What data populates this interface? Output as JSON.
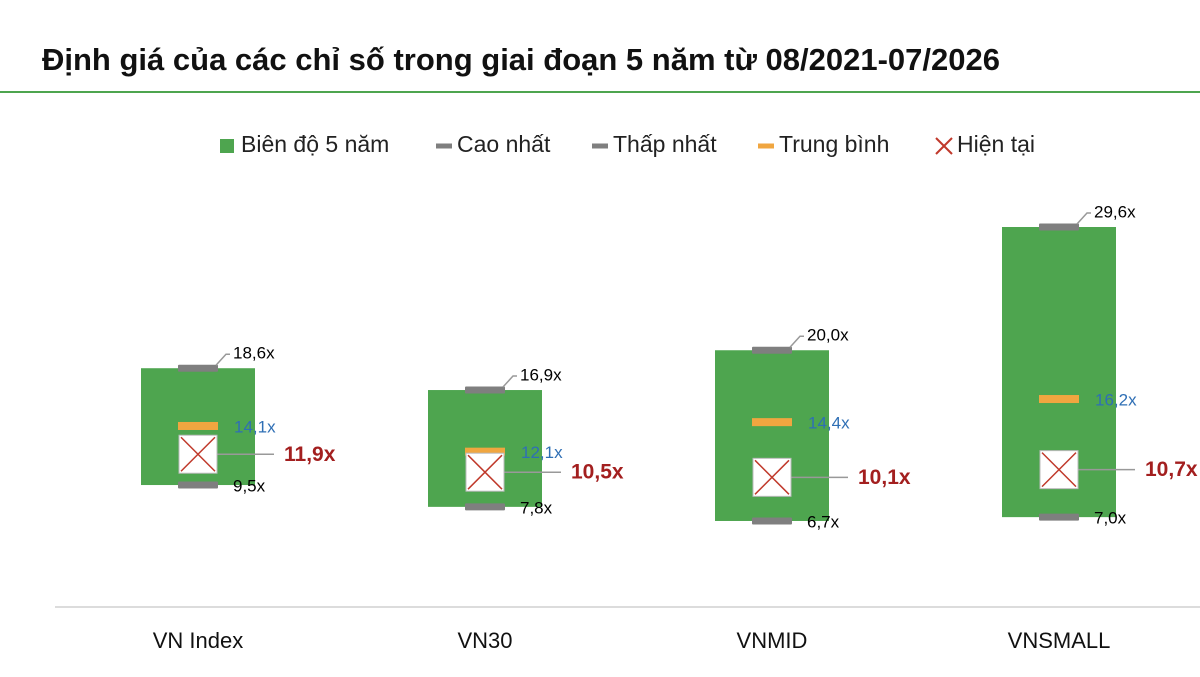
{
  "chart_data": {
    "type": "range",
    "title": "Định giá của các chỉ số trong giai đoạn 5 năm từ 08/2021-07/2026",
    "categories": [
      "VN Index",
      "VN30",
      "VNMID",
      "VNSMALL"
    ],
    "range": {
      "name": "Biên độ 5 năm",
      "color": "#4ea54f"
    },
    "series": [
      {
        "name": "Cao nhất",
        "role": "max",
        "color": "#7f7f7f",
        "label_color": "#000000",
        "values": [
          18.6,
          16.9,
          20.0,
          29.6
        ],
        "value_labels": [
          "18,6x",
          "16,9x",
          "20,0x",
          "29,6x"
        ]
      },
      {
        "name": "Thấp nhất",
        "role": "min",
        "color": "#7f7f7f",
        "label_color": "#000000",
        "values": [
          9.5,
          7.8,
          6.7,
          7.0
        ],
        "value_labels": [
          "9,5x",
          "7,8x",
          "6,7x",
          "7,0x"
        ]
      },
      {
        "name": "Trung bình",
        "role": "avg",
        "color": "#f0a640",
        "label_color": "#2f6fb5",
        "values": [
          14.1,
          12.1,
          14.4,
          16.2
        ],
        "value_labels": [
          "14,1x",
          "12,1x",
          "14,4x",
          "16,2x"
        ]
      },
      {
        "name": "Hiện tại",
        "role": "current",
        "color": "#c0392b",
        "label_color": "#a31f1f",
        "values": [
          11.9,
          10.5,
          10.1,
          10.7
        ],
        "value_labels": [
          "11,9x",
          "10,5x",
          "10,1x",
          "10,7x"
        ]
      }
    ]
  }
}
